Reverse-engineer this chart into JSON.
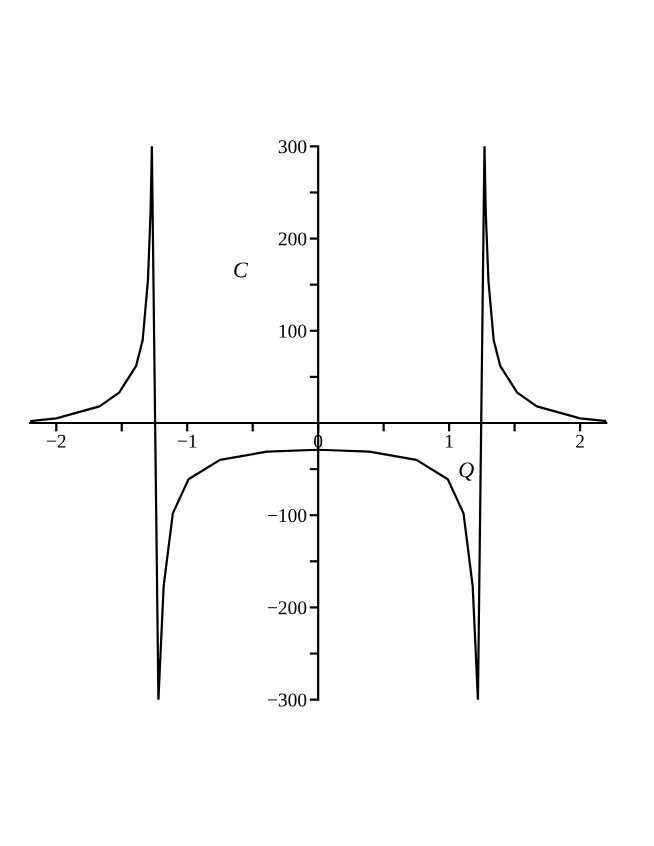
{
  "chart_data": {
    "type": "line",
    "xlabel": "Q",
    "ylabel": "C",
    "series": [
      {
        "color": "#000000",
        "x": [
          -2.2,
          -2,
          -1.67,
          -1.52,
          -1.39,
          -1.34,
          -1.3,
          -1.28,
          -1.27,
          -1.22,
          -1.18,
          -1.11,
          -0.99,
          -0.75,
          -0.39,
          0,
          0.39,
          0.75,
          0.99,
          1.11,
          1.18,
          1.22,
          1.27,
          1.28,
          1.3,
          1.34,
          1.39,
          1.52,
          1.67,
          2,
          2.2
        ],
        "values": [
          2,
          5,
          18,
          33,
          62,
          90,
          155,
          228,
          300,
          -300,
          -177,
          -98,
          -61,
          -40,
          -31,
          -29,
          -31,
          -40,
          -61,
          -98,
          -177,
          -300,
          300,
          228,
          155,
          90,
          62,
          33,
          18,
          5,
          2
        ]
      }
    ],
    "xlim": [
      -2.2,
      2.2
    ],
    "ylim": [
      -300,
      300
    ],
    "xticks": [
      {
        "value": -2,
        "label": "−2"
      },
      {
        "value": -1.5,
        "label": null
      },
      {
        "value": -1,
        "label": "−1"
      },
      {
        "value": -0.5,
        "label": null
      },
      0,
      {
        "value": 0.5,
        "label": null
      },
      1,
      {
        "value": 1.5,
        "label": null
      },
      2
    ],
    "yticks": [
      {
        "value": -300,
        "label": "−300"
      },
      {
        "value": -250,
        "label": null
      },
      {
        "value": -200,
        "label": "−200"
      },
      {
        "value": -150,
        "label": null
      },
      {
        "value": -100,
        "label": "−100"
      },
      {
        "value": -50,
        "label": null
      },
      {
        "value": 50,
        "label": null
      },
      100,
      {
        "value": 150,
        "label": null
      },
      200,
      {
        "value": 250,
        "label": null
      },
      300
    ],
    "grid": false,
    "legend": false,
    "line_style": "solid",
    "marker": "none"
  }
}
